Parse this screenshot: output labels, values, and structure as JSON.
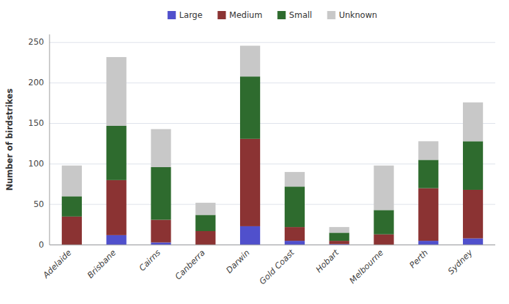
{
  "chart_data": {
    "type": "bar",
    "stacked": true,
    "categories": [
      "Adelaide",
      "Brisbane",
      "Cairns",
      "Canberra",
      "Darwin",
      "Gold Coast",
      "Hobart",
      "Melbourne",
      "Perth",
      "Sydney"
    ],
    "series": [
      {
        "name": "Large",
        "color": "#5050cc",
        "values": [
          0,
          12,
          3,
          0,
          23,
          5,
          1,
          0,
          5,
          8
        ]
      },
      {
        "name": "Medium",
        "color": "#8B3333",
        "values": [
          35,
          68,
          28,
          17,
          108,
          17,
          4,
          13,
          65,
          60
        ]
      },
      {
        "name": "Small",
        "color": "#2E6B2E",
        "values": [
          25,
          67,
          65,
          20,
          77,
          50,
          10,
          30,
          35,
          60
        ]
      },
      {
        "name": "Unknown",
        "color": "#C8C8C8",
        "values": [
          38,
          85,
          47,
          15,
          38,
          18,
          7,
          55,
          23,
          48
        ]
      }
    ],
    "ylabel": "Number of birdstrikes",
    "ylim": [
      0,
      260
    ],
    "yticks": [
      0,
      50,
      100,
      150,
      200,
      250
    ],
    "grid": true,
    "legend": "top"
  }
}
